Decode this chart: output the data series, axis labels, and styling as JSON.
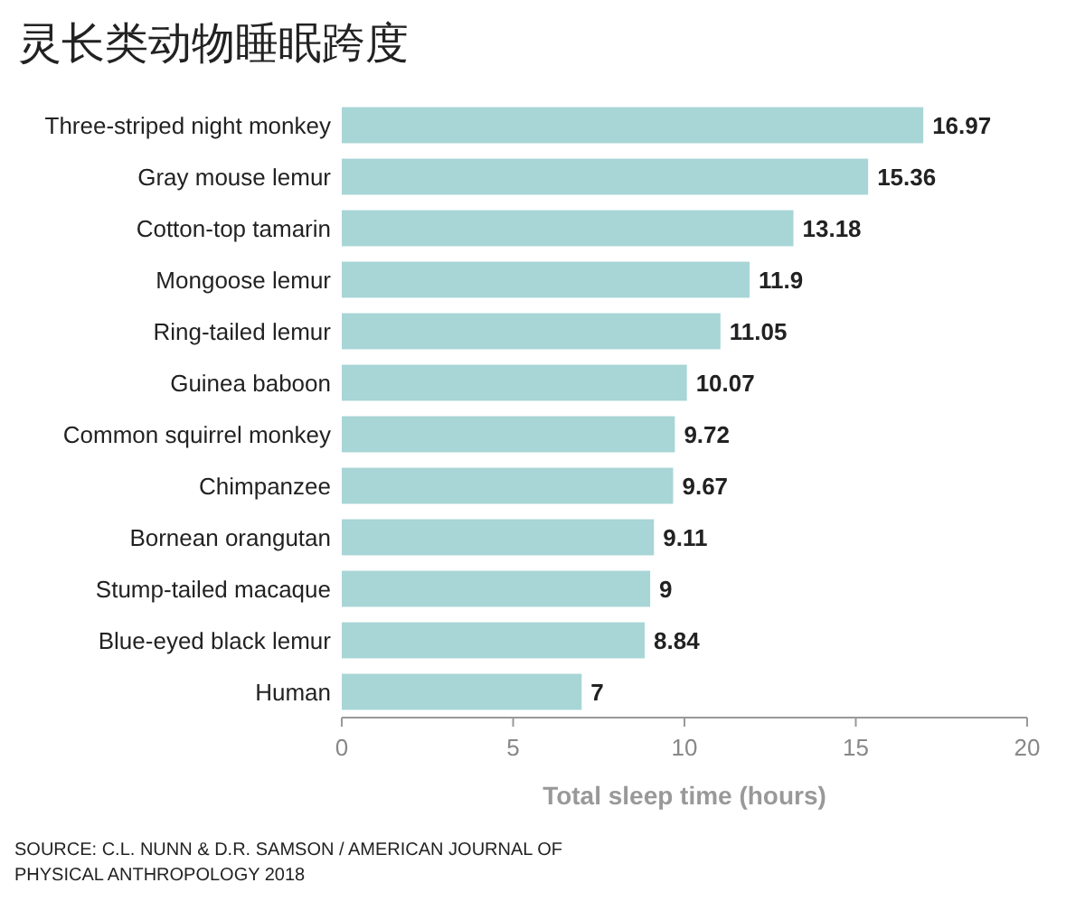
{
  "chart_data": {
    "type": "bar",
    "orientation": "horizontal",
    "title": "灵长类动物睡眠跨度",
    "categories": [
      "Three-striped night monkey",
      "Gray mouse lemur",
      "Cotton-top tamarin",
      "Mongoose lemur",
      "Ring-tailed lemur",
      "Guinea baboon",
      "Common squirrel monkey",
      "Chimpanzee",
      "Bornean orangutan",
      "Stump-tailed macaque",
      "Blue-eyed black lemur",
      "Human"
    ],
    "values": [
      16.97,
      15.36,
      13.18,
      11.9,
      11.05,
      10.07,
      9.72,
      9.67,
      9.11,
      9,
      8.84,
      7
    ],
    "color": "#a8d5d6",
    "data_labels": true,
    "xlabel": "Total sleep time (hours)",
    "xlim": [
      0,
      20
    ],
    "xticks": [
      0,
      5,
      10,
      15,
      20
    ],
    "grid": false,
    "annotations": [
      "SOURCE: C.L. NUNN & D.R. SAMSON / AMERICAN JOURNAL OF PHYSICAL ANTHROPOLOGY 2018"
    ]
  }
}
